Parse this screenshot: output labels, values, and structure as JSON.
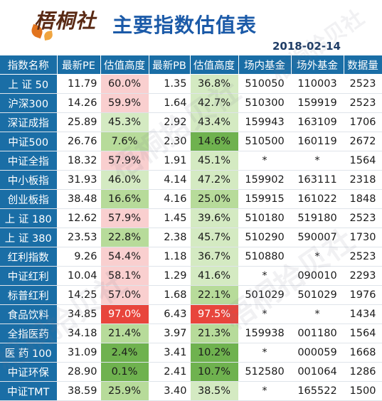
{
  "header": {
    "logo_text": "梧桐社",
    "title": "主要指数估值表",
    "date": "2018-02-14",
    "watermark": "梧桐拾贝社"
  },
  "columns": [
    "指数名称",
    "最新PE",
    "估值高度",
    "最新PB",
    "估值高度",
    "场内基金",
    "场外基金",
    "数据量"
  ],
  "rows": [
    {
      "name": "上 证  50",
      "pe": "11.79",
      "pe_pct": "60.0%",
      "pb": "1.35",
      "pb_pct": "36.8%",
      "onfund": "510050",
      "offfund": "110003",
      "count": "2523",
      "pe_lvl": "pink",
      "pb_lvl": "lgreen"
    },
    {
      "name": "沪深300",
      "pe": "14.26",
      "pe_pct": "59.9%",
      "pb": "1.64",
      "pb_pct": "42.7%",
      "onfund": "510300",
      "offfund": "159919",
      "count": "2523",
      "pe_lvl": "pink",
      "pb_lvl": "lgreen"
    },
    {
      "name": "深证成指",
      "pe": "25.89",
      "pe_pct": "45.3%",
      "pb": "2.92",
      "pb_pct": "43.4%",
      "onfund": "159943",
      "offfund": "163109",
      "count": "1706",
      "pe_lvl": "lgreen",
      "pb_lvl": "lgreen"
    },
    {
      "name": "中证500",
      "pe": "26.76",
      "pe_pct": "7.6%",
      "pb": "2.30",
      "pb_pct": "14.6%",
      "onfund": "510500",
      "offfund": "160119",
      "count": "2672",
      "pe_lvl": "green",
      "pb_lvl": "green2"
    },
    {
      "name": "中证全指",
      "pe": "18.32",
      "pe_pct": "57.9%",
      "pb": "1.91",
      "pb_pct": "45.1%",
      "onfund": "*",
      "offfund": "*",
      "count": "1564",
      "pe_lvl": "pink",
      "pb_lvl": "lgreen"
    },
    {
      "name": "中小板指",
      "pe": "31.93",
      "pe_pct": "46.0%",
      "pb": "4.14",
      "pb_pct": "47.2%",
      "onfund": "159902",
      "offfund": "163111",
      "count": "2318",
      "pe_lvl": "lgreen",
      "pb_lvl": "lgreen"
    },
    {
      "name": "创业板指",
      "pe": "38.48",
      "pe_pct": "16.6%",
      "pb": "4.16",
      "pb_pct": "25.0%",
      "onfund": "159915",
      "offfund": "161022",
      "count": "1848",
      "pe_lvl": "green",
      "pb_lvl": "green"
    },
    {
      "name": "上 证  180",
      "pe": "12.62",
      "pe_pct": "57.9%",
      "pb": "1.45",
      "pb_pct": "39.6%",
      "onfund": "510180",
      "offfund": "519180",
      "count": "2523",
      "pe_lvl": "pink",
      "pb_lvl": "lgreen"
    },
    {
      "name": "上 证  380",
      "pe": "23.53",
      "pe_pct": "22.8%",
      "pb": "2.38",
      "pb_pct": "45.7%",
      "onfund": "510290",
      "offfund": "590007",
      "count": "1730",
      "pe_lvl": "green",
      "pb_lvl": "lgreen"
    },
    {
      "name": "红利指数",
      "pe": "9.26",
      "pe_pct": "54.4%",
      "pb": "1.18",
      "pb_pct": "36.7%",
      "onfund": "510880",
      "offfund": "*",
      "count": "2523",
      "pe_lvl": "pink",
      "pb_lvl": "lgreen"
    },
    {
      "name": "中证红利",
      "pe": "10.04",
      "pe_pct": "58.1%",
      "pb": "1.29",
      "pb_pct": "41.6%",
      "onfund": "*",
      "offfund": "090010",
      "count": "2293",
      "pe_lvl": "pink",
      "pb_lvl": "lgreen"
    },
    {
      "name": "标普红利",
      "pe": "14.25",
      "pe_pct": "57.0%",
      "pb": "1.68",
      "pb_pct": "22.1%",
      "onfund": "501029",
      "offfund": "501029",
      "count": "1976",
      "pe_lvl": "pink",
      "pb_lvl": "green"
    },
    {
      "name": "食品饮料",
      "pe": "34.85",
      "pe_pct": "97.0%",
      "pb": "6.43",
      "pb_pct": "97.5%",
      "onfund": "*",
      "offfund": "*",
      "count": "1434",
      "pe_lvl": "red2",
      "pb_lvl": "red2"
    },
    {
      "name": "全指医药",
      "pe": "34.18",
      "pe_pct": "21.4%",
      "pb": "3.97",
      "pb_pct": "21.3%",
      "onfund": "159938",
      "offfund": "001180",
      "count": "1564",
      "pe_lvl": "green",
      "pb_lvl": "green"
    },
    {
      "name": "医 药  100",
      "pe": "31.09",
      "pe_pct": "2.4%",
      "pb": "3.41",
      "pb_pct": "10.2%",
      "onfund": "*",
      "offfund": "000059",
      "count": "1668",
      "pe_lvl": "green2",
      "pb_lvl": "green2"
    },
    {
      "name": "中证环保",
      "pe": "28.90",
      "pe_pct": "0.1%",
      "pb": "2.41",
      "pb_pct": "10.7%",
      "onfund": "512580",
      "offfund": "001064",
      "count": "1286",
      "pe_lvl": "green2",
      "pb_lvl": "green2"
    },
    {
      "name": "中证TMT",
      "pe": "38.59",
      "pe_pct": "25.9%",
      "pb": "3.40",
      "pb_pct": "38.5%",
      "onfund": "*",
      "offfund": "165522",
      "count": "1500",
      "pe_lvl": "green",
      "pb_lvl": "lgreen"
    }
  ]
}
